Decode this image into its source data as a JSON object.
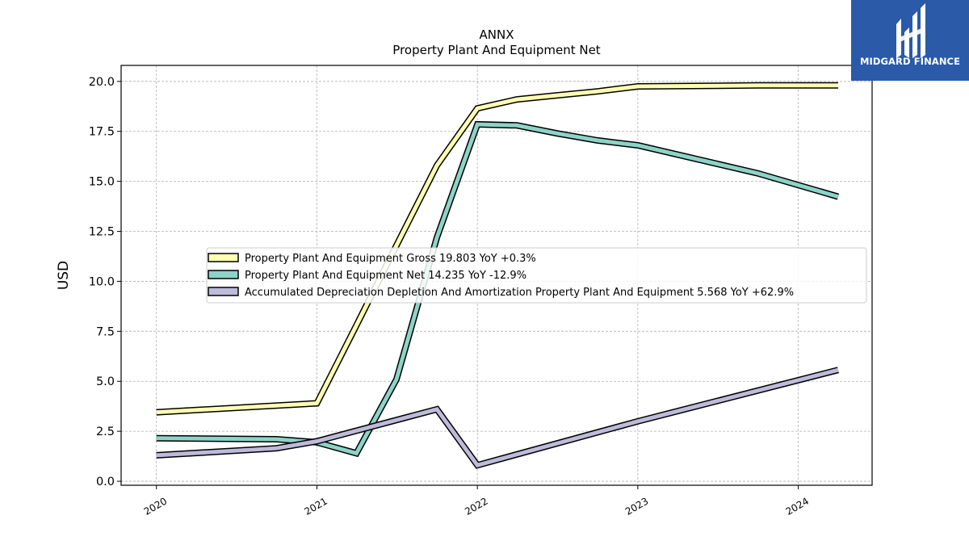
{
  "brand": {
    "name": "MIDGARD FINANCE",
    "color": "#2a5aa8"
  },
  "chart_data": {
    "type": "line",
    "title": "ANNX",
    "subtitle": "Property Plant And Equipment Net",
    "ylabel": "USD",
    "xlabel": "",
    "ylim": [
      -0.2,
      20.8
    ],
    "xlim": [
      2019.78,
      2024.46
    ],
    "yticks": [
      "0.0",
      "2.5",
      "5.0",
      "7.5",
      "10.0",
      "12.5",
      "15.0",
      "17.5",
      "20.0"
    ],
    "xticks": [
      "2020",
      "2021",
      "2022",
      "2023",
      "2024"
    ],
    "grid": true,
    "legend_position": "center",
    "series": [
      {
        "name": "Property Plant And Equipment Gross",
        "legend_label": "Property Plant And Equipment Gross  19.803 YoY +0.3%",
        "color": "#ffffb3",
        "x": [
          "2020-01-01",
          "2021-01-01",
          "2021-04-01",
          "2021-07-01",
          "2021-10-01",
          "2022-01-01",
          "2022-04-01",
          "2022-07-01",
          "2022-10-01",
          "2023-01-01",
          "2023-10-01",
          "2024-04-01"
        ],
        "values": [
          3.45,
          3.9,
          7.8,
          11.8,
          15.8,
          18.65,
          19.1,
          19.3,
          19.5,
          19.75,
          19.8,
          19.8
        ]
      },
      {
        "name": "Property Plant And Equipment Net",
        "legend_label": "Property Plant And Equipment Net  14.235 YoY -12.9%",
        "color": "#8dd3c7",
        "x": [
          "2020-01-01",
          "2020-10-01",
          "2021-01-01",
          "2021-04-01",
          "2021-07-01",
          "2021-10-01",
          "2022-01-01",
          "2022-04-01",
          "2022-07-01",
          "2022-10-01",
          "2023-01-01",
          "2023-10-01",
          "2024-04-01"
        ],
        "values": [
          2.15,
          2.1,
          1.95,
          1.4,
          5.1,
          12.2,
          17.85,
          17.8,
          17.4,
          17.05,
          16.8,
          15.4,
          14.235
        ]
      },
      {
        "name": "Accumulated Depreciation Depletion And Amortization Property Plant And Equipment",
        "legend_label": "Accumulated Depreciation Depletion And Amortization Property Plant And Equipment  5.568 YoY +62.9%",
        "color": "#bebada",
        "x": [
          "2020-01-01",
          "2020-10-01",
          "2021-01-01",
          "2021-10-01",
          "2022-01-01",
          "2023-01-01",
          "2024-04-01"
        ],
        "values": [
          1.3,
          1.65,
          2.0,
          3.6,
          0.8,
          3.0,
          5.568
        ]
      }
    ]
  }
}
